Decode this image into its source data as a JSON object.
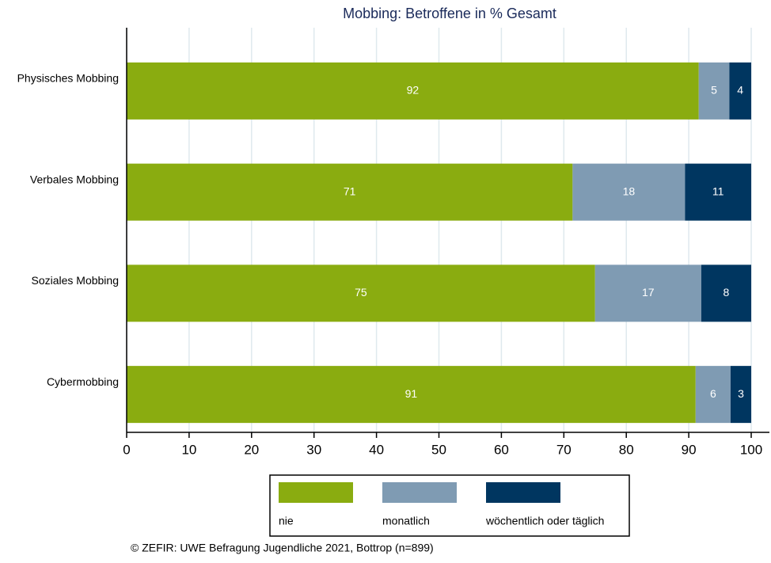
{
  "chart_data": {
    "type": "stacked_barh",
    "title": "Mobbing: Betroffene in % Gesamt",
    "categories": [
      "Physisches Mobbing",
      "Verbales Mobbing",
      "Soziales Mobbing",
      "Cybermobbing"
    ],
    "series": [
      {
        "name": "nie",
        "color": "#8aac10",
        "values": [
          91.6,
          71.4,
          75.0,
          91.1
        ],
        "value_labels": [
          "92",
          "71",
          "75",
          "91"
        ]
      },
      {
        "name": "monatlich",
        "color": "#7f9bb3",
        "values": [
          4.9,
          18.0,
          17.0,
          5.6
        ],
        "value_labels": [
          "5",
          "18",
          "17",
          "6"
        ]
      },
      {
        "name": "wöchentlich oder täglich",
        "color": "#003660",
        "values": [
          3.5,
          10.6,
          8.0,
          3.3
        ],
        "value_labels": [
          "4",
          "11",
          "8",
          "3"
        ]
      }
    ],
    "xlim": [
      0,
      100
    ],
    "xticks": [
      0,
      10,
      20,
      30,
      40,
      50,
      60,
      70,
      80,
      90,
      100
    ],
    "grid": true,
    "legend": "bottom",
    "note": "© ZEFIR: UWE Befragung Jugendliche 2021, Bottrop (n=899)"
  }
}
